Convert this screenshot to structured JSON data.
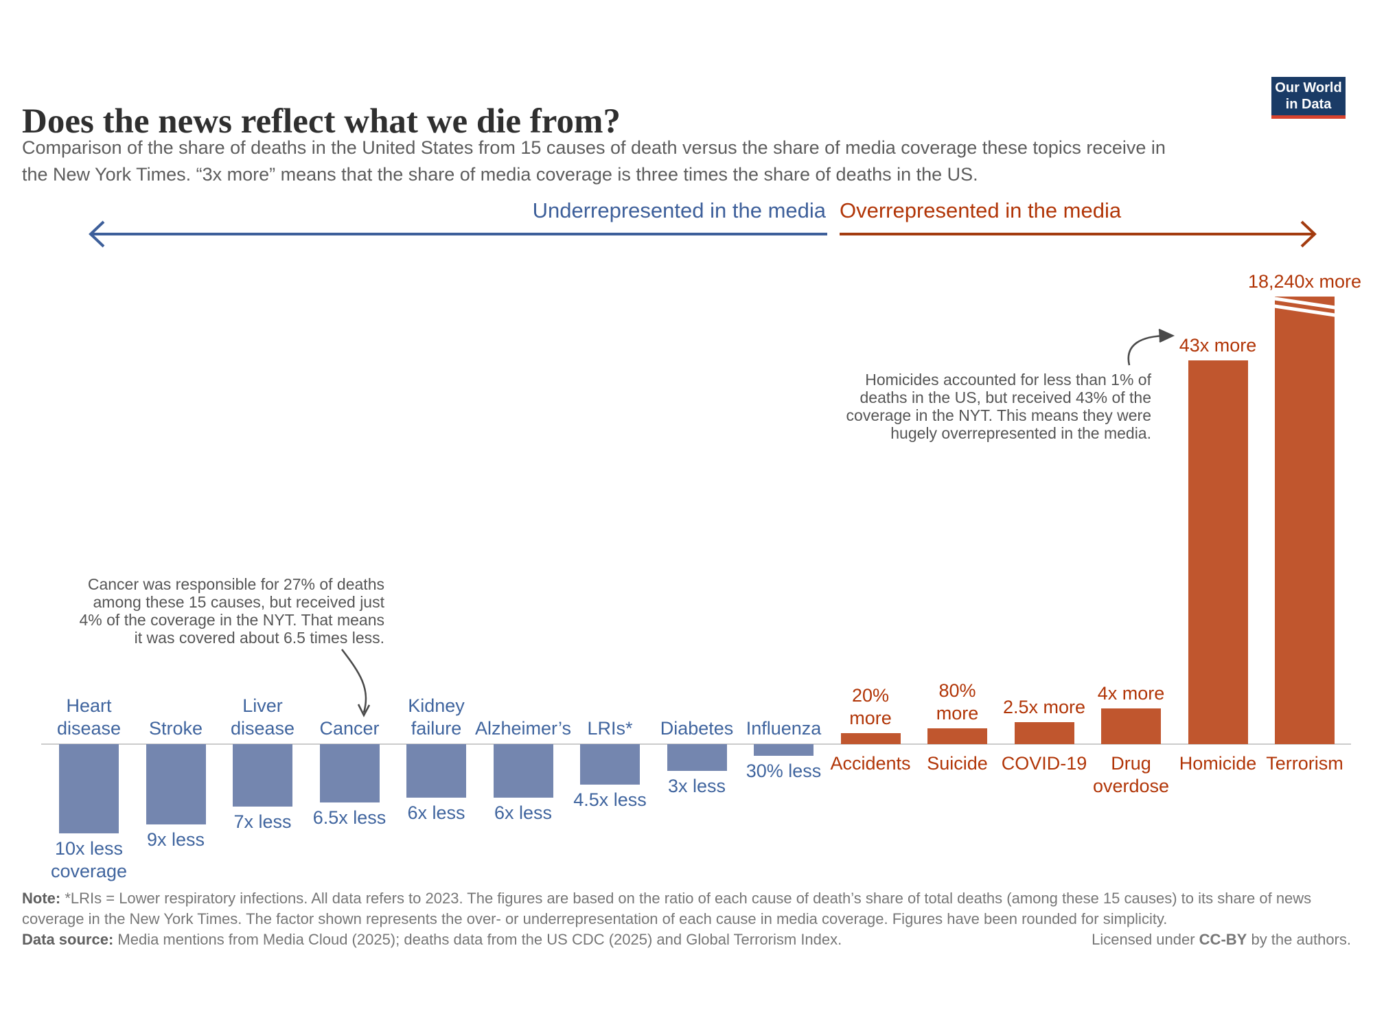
{
  "header": {
    "title": "Does the news reflect what we die from?",
    "logo_line1": "Our World",
    "logo_line2": "in Data",
    "subtitle_line1": "Comparison of the share of deaths in the United States from 15 causes of death versus the share of media coverage these topics receive in",
    "subtitle_line2": "the New York Times. “3x more” means that the share of media coverage is three times the share of deaths in the US."
  },
  "direction_header": {
    "underrepresented_label": "Underrepresented in the media",
    "overrepresented_label": "Overrepresented in the media",
    "underrepresented_color": "#3d5f9a",
    "overrepresented_color": "#b13507"
  },
  "annotations": {
    "cancer": {
      "lines": [
        "Cancer was responsible for 27% of deaths",
        "among these 15 causes, but received just",
        "4% of the coverage in the NYT. That means",
        "it was covered about 6.5 times less."
      ]
    },
    "homicide": {
      "lines": [
        "Homicides accounted for less than 1% of",
        "deaths in the US, but received 43% of the",
        "coverage in the NYT. This means they were",
        "hugely overrepresented in the media."
      ]
    }
  },
  "chart_data": {
    "type": "bar",
    "title": "Does the news reflect what we die from?",
    "units": "over/under-representation factor of media coverage vs share of deaths",
    "baseline_meaning": "share of media coverage equals share of deaths",
    "legend_position": "none",
    "grid": false,
    "categories": [
      "Heart disease",
      "Stroke",
      "Liver disease",
      "Cancer",
      "Kidney failure",
      "Alzheimer’s",
      "LRIs*",
      "Diabetes",
      "Influenza",
      "Accidents",
      "Suicide",
      "COVID-19",
      "Drug overdose",
      "Homicide",
      "Terrorism"
    ],
    "coverage_factor": [
      -10,
      -9,
      -7,
      -6.5,
      -6,
      -6,
      -4.5,
      -3,
      -1.3,
      1.2,
      1.8,
      2.5,
      4,
      43,
      18240
    ],
    "value_labels": [
      "10x less coverage",
      "9x less",
      "7x less",
      "6.5x less",
      "6x less",
      "6x less",
      "4.5x less",
      "3x less",
      "30% less",
      "20% more",
      "80% more",
      "2.5x more",
      "4x more",
      "43x more",
      "18,240x more"
    ],
    "colors": {
      "under": "#7486af",
      "over": "#c0562e"
    },
    "bars": [
      {
        "name_lines": [
          "Heart",
          "disease"
        ],
        "value_lines": [
          "10x less",
          "coverage"
        ],
        "factor": -10
      },
      {
        "name_lines": [
          "Stroke"
        ],
        "value_lines": [
          "9x less"
        ],
        "factor": -9
      },
      {
        "name_lines": [
          "Liver",
          "disease"
        ],
        "value_lines": [
          "7x less"
        ],
        "factor": -7
      },
      {
        "name_lines": [
          "Cancer"
        ],
        "value_lines": [
          "6.5x less"
        ],
        "factor": -6.5
      },
      {
        "name_lines": [
          "Kidney",
          "failure"
        ],
        "value_lines": [
          "6x less"
        ],
        "factor": -6
      },
      {
        "name_lines": [
          "Alzheimer’s"
        ],
        "value_lines": [
          "6x less"
        ],
        "factor": -6
      },
      {
        "name_lines": [
          "LRIs*"
        ],
        "value_lines": [
          "4.5x less"
        ],
        "factor": -4.5
      },
      {
        "name_lines": [
          "Diabetes"
        ],
        "value_lines": [
          "3x less"
        ],
        "factor": -3
      },
      {
        "name_lines": [
          "Influenza"
        ],
        "value_lines": [
          "30% less"
        ],
        "factor": -1.3
      },
      {
        "name_lines": [
          "Accidents"
        ],
        "value_lines": [
          "20%",
          "more"
        ],
        "factor": 1.2
      },
      {
        "name_lines": [
          "Suicide"
        ],
        "value_lines": [
          "80%",
          "more"
        ],
        "factor": 1.8
      },
      {
        "name_lines": [
          "COVID-19"
        ],
        "value_lines": [
          "2.5x more"
        ],
        "factor": 2.5
      },
      {
        "name_lines": [
          "Drug",
          "overdose"
        ],
        "value_lines": [
          "4x more"
        ],
        "factor": 4
      },
      {
        "name_lines": [
          "Homicide"
        ],
        "value_lines": [
          "43x more"
        ],
        "factor": 43
      },
      {
        "name_lines": [
          "Terrorism"
        ],
        "value_lines": [
          "18,240x more"
        ],
        "factor": 18240,
        "truncated": true
      }
    ]
  },
  "footer": {
    "note_label": "Note:",
    "note_text": " *LRIs = Lower respiratory infections. All data refers to 2023. The figures are based on the ratio of each cause of death’s share of total deaths (among these 15 causes) to its share of news coverage in the New York Times. The factor shown represents the over- or underrepresentation of each cause in media coverage. Figures have been rounded for simplicity.",
    "source_label": "Data source:",
    "source_text": " Media mentions from Media Cloud (2025); deaths data from the US CDC (2025) and Global Terrorism Index.",
    "license_prefix": "Licensed under ",
    "license_bold": "CC-BY",
    "license_suffix": " by the authors."
  }
}
